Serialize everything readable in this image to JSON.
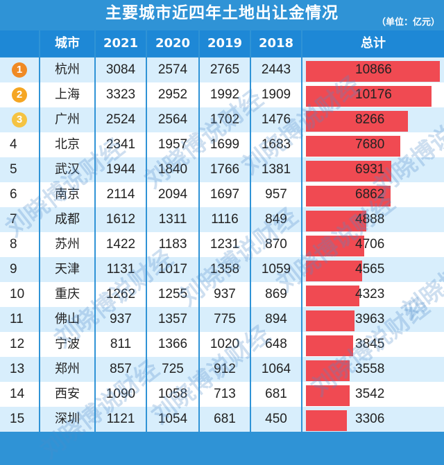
{
  "title": "主要城市近四年土地出让金情况",
  "unit": "（单位：亿元）",
  "watermark": "刘晓博说财经",
  "colors": {
    "header_bg": "#1e88d6",
    "bar": "#f04a52",
    "rank1": "#f08a24",
    "rank2": "#f5a623",
    "rank3": "#f5c342"
  },
  "chart_data": {
    "type": "table",
    "title": "主要城市近四年土地出让金情况",
    "unit": "（单位：亿元）",
    "columns": [
      "城市",
      "2021",
      "2020",
      "2019",
      "2018",
      "总计"
    ],
    "bar_column": "总计",
    "bar_max": 10866,
    "rows": [
      {
        "rank": "1",
        "city": "杭州",
        "y2021": "3084",
        "y2020": "2574",
        "y2019": "2765",
        "y2018": "2443",
        "total": "10866",
        "total_value": 10866
      },
      {
        "rank": "2",
        "city": "上海",
        "y2021": "3323",
        "y2020": "2952",
        "y2019": "1992",
        "y2018": "1909",
        "total": "10176",
        "total_value": 10176
      },
      {
        "rank": "3",
        "city": "广州",
        "y2021": "2524",
        "y2020": "2564",
        "y2019": "1702",
        "y2018": "1476",
        "total": "8266",
        "total_value": 8266
      },
      {
        "rank": "4",
        "city": "北京",
        "y2021": "2341",
        "y2020": "1957",
        "y2019": "1699",
        "y2018": "1683",
        "total": "7680",
        "total_value": 7680
      },
      {
        "rank": "5",
        "city": "武汉",
        "y2021": "1944",
        "y2020": "1840",
        "y2019": "1766",
        "y2018": "1381",
        "total": "6931",
        "total_value": 6931
      },
      {
        "rank": "6",
        "city": "南京",
        "y2021": "2114",
        "y2020": "2094",
        "y2019": "1697",
        "y2018": "957",
        "total": "6862",
        "total_value": 6862
      },
      {
        "rank": "7",
        "city": "成都",
        "y2021": "1612",
        "y2020": "1311",
        "y2019": "1116",
        "y2018": "849",
        "total": "4888",
        "total_value": 4888
      },
      {
        "rank": "8",
        "city": "苏州",
        "y2021": "1422",
        "y2020": "1183",
        "y2019": "1231",
        "y2018": "870",
        "total": "4706",
        "total_value": 4706
      },
      {
        "rank": "9",
        "city": "天津",
        "y2021": "1131",
        "y2020": "1017",
        "y2019": "1358",
        "y2018": "1059",
        "total": "4565",
        "total_value": 4565
      },
      {
        "rank": "10",
        "city": "重庆",
        "y2021": "1262",
        "y2020": "1255",
        "y2019": "937",
        "y2018": "869",
        "total": "4323",
        "total_value": 4323
      },
      {
        "rank": "11",
        "city": "佛山",
        "y2021": "937",
        "y2020": "1357",
        "y2019": "775",
        "y2018": "894",
        "total": "3963",
        "total_value": 3963
      },
      {
        "rank": "12",
        "city": "宁波",
        "y2021": "811",
        "y2020": "1366",
        "y2019": "1020",
        "y2018": "648",
        "total": "3845",
        "total_value": 3845
      },
      {
        "rank": "13",
        "city": "郑州",
        "y2021": "857",
        "y2020": "725",
        "y2019": "912",
        "y2018": "1064",
        "total": "3558",
        "total_value": 3558
      },
      {
        "rank": "14",
        "city": "西安",
        "y2021": "1090",
        "y2020": "1058",
        "y2019": "713",
        "y2018": "681",
        "total": "3542",
        "total_value": 3542
      },
      {
        "rank": "15",
        "city": "深圳",
        "y2021": "1121",
        "y2020": "1054",
        "y2019": "681",
        "y2018": "450",
        "total": "3306",
        "total_value": 3306
      }
    ]
  }
}
